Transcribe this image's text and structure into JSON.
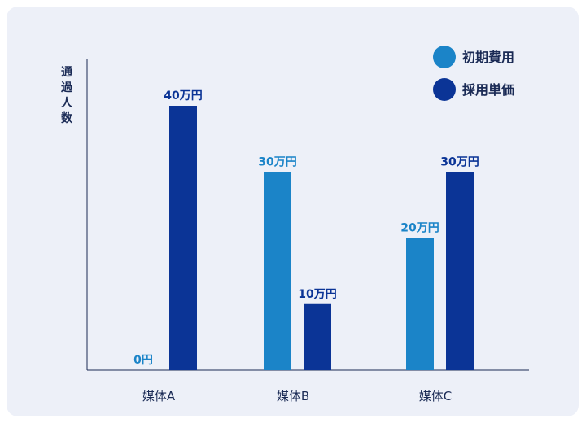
{
  "colors": {
    "initial": "#1b84c8",
    "unit": "#0b3496",
    "axis": "#1a2a55"
  },
  "chart_data": {
    "type": "bar",
    "title": "",
    "ylabel": "通過人数",
    "ylabel_chars": [
      "通",
      "過",
      "人",
      "数"
    ],
    "xlabel": "",
    "ylim": [
      0,
      45
    ],
    "legend_position": "top-right",
    "grid": false,
    "categories": [
      "媒体A",
      "媒体B",
      "媒体C"
    ],
    "series": [
      {
        "name": "初期費用",
        "values": [
          0,
          30,
          20
        ],
        "labels": [
          "0円",
          "30万円",
          "20万円"
        ]
      },
      {
        "name": "採用単価",
        "values": [
          40,
          10,
          30
        ],
        "labels": [
          "40万円",
          "10万円",
          "30万円"
        ]
      }
    ]
  }
}
